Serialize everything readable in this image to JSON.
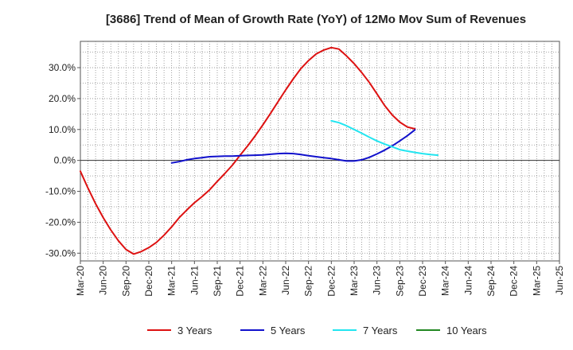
{
  "chart_data": {
    "type": "line",
    "title": "[3686]  Trend of Mean of Growth Rate (YoY) of 12Mo Mov Sum of Revenues",
    "xlabel": "",
    "ylabel": "",
    "ylim": [
      -0.325,
      0.385
    ],
    "grid": true,
    "legend_position": "bottom",
    "y_ticks": [
      {
        "value": 0.3,
        "label": "30.0%"
      },
      {
        "value": 0.2,
        "label": "20.0%"
      },
      {
        "value": 0.1,
        "label": "10.0%"
      },
      {
        "value": 0.0,
        "label": "0.0%"
      },
      {
        "value": -0.1,
        "label": "-10.0%"
      },
      {
        "value": -0.2,
        "label": "-20.0%"
      },
      {
        "value": -0.3,
        "label": "-30.0%"
      }
    ],
    "x_tick_labels": [
      "Mar-20",
      "Jun-20",
      "Sep-20",
      "Dec-20",
      "Mar-21",
      "Jun-21",
      "Sep-21",
      "Dec-21",
      "Mar-22",
      "Jun-22",
      "Sep-22",
      "Dec-22",
      "Mar-23",
      "Jun-23",
      "Sep-23",
      "Dec-23",
      "Mar-24",
      "Jun-24",
      "Sep-24",
      "Dec-24",
      "Mar-25",
      "Jun-25"
    ],
    "series": [
      {
        "name": "3 Years",
        "color": "#dd1111",
        "values": [
          [
            0,
            -0.035
          ],
          [
            1,
            -0.09
          ],
          [
            2,
            -0.14
          ],
          [
            3,
            -0.185
          ],
          [
            4,
            -0.225
          ],
          [
            5,
            -0.26
          ],
          [
            6,
            -0.288
          ],
          [
            7,
            -0.303
          ],
          [
            8,
            -0.295
          ],
          [
            9,
            -0.282
          ],
          [
            10,
            -0.265
          ],
          [
            11,
            -0.242
          ],
          [
            12,
            -0.215
          ],
          [
            13,
            -0.185
          ],
          [
            14,
            -0.16
          ],
          [
            15,
            -0.137
          ],
          [
            16,
            -0.117
          ],
          [
            17,
            -0.095
          ],
          [
            18,
            -0.068
          ],
          [
            19,
            -0.042
          ],
          [
            20,
            -0.015
          ],
          [
            21,
            0.017
          ],
          [
            22,
            0.047
          ],
          [
            23,
            0.08
          ],
          [
            24,
            0.115
          ],
          [
            25,
            0.152
          ],
          [
            26,
            0.19
          ],
          [
            27,
            0.228
          ],
          [
            28,
            0.264
          ],
          [
            29,
            0.297
          ],
          [
            30,
            0.323
          ],
          [
            31,
            0.344
          ],
          [
            32,
            0.357
          ],
          [
            33,
            0.365
          ],
          [
            34,
            0.36
          ],
          [
            35,
            0.338
          ],
          [
            36,
            0.313
          ],
          [
            37,
            0.284
          ],
          [
            38,
            0.252
          ],
          [
            39,
            0.215
          ],
          [
            40,
            0.178
          ],
          [
            41,
            0.147
          ],
          [
            42,
            0.124
          ],
          [
            43,
            0.108
          ],
          [
            44,
            0.102
          ]
        ]
      },
      {
        "name": "5 Years",
        "color": "#1111cc",
        "values": [
          [
            12,
            -0.008
          ],
          [
            13,
            -0.004
          ],
          [
            14,
            0.002
          ],
          [
            15,
            0.006
          ],
          [
            16,
            0.009
          ],
          [
            17,
            0.012
          ],
          [
            18,
            0.013
          ],
          [
            19,
            0.014
          ],
          [
            20,
            0.014
          ],
          [
            21,
            0.015
          ],
          [
            22,
            0.016
          ],
          [
            23,
            0.017
          ],
          [
            24,
            0.018
          ],
          [
            25,
            0.02
          ],
          [
            26,
            0.022
          ],
          [
            27,
            0.023
          ],
          [
            28,
            0.022
          ],
          [
            29,
            0.019
          ],
          [
            30,
            0.015
          ],
          [
            31,
            0.012
          ],
          [
            32,
            0.009
          ],
          [
            33,
            0.006
          ],
          [
            34,
            0.002
          ],
          [
            35,
            -0.002
          ],
          [
            36,
            -0.002
          ],
          [
            37,
            0.002
          ],
          [
            38,
            0.01
          ],
          [
            39,
            0.021
          ],
          [
            40,
            0.033
          ],
          [
            41,
            0.047
          ],
          [
            42,
            0.063
          ],
          [
            43,
            0.08
          ],
          [
            44,
            0.099
          ]
        ]
      },
      {
        "name": "7 Years",
        "color": "#22e5f0",
        "values": [
          [
            33,
            0.128
          ],
          [
            34,
            0.122
          ],
          [
            35,
            0.112
          ],
          [
            36,
            0.1
          ],
          [
            37,
            0.088
          ],
          [
            38,
            0.075
          ],
          [
            39,
            0.063
          ],
          [
            40,
            0.053
          ],
          [
            41,
            0.044
          ],
          [
            42,
            0.035
          ],
          [
            43,
            0.03
          ],
          [
            44,
            0.026
          ],
          [
            45,
            0.022
          ],
          [
            46,
            0.019
          ],
          [
            47,
            0.017
          ]
        ]
      },
      {
        "name": "10 Years",
        "color": "#228822",
        "values": []
      }
    ]
  }
}
